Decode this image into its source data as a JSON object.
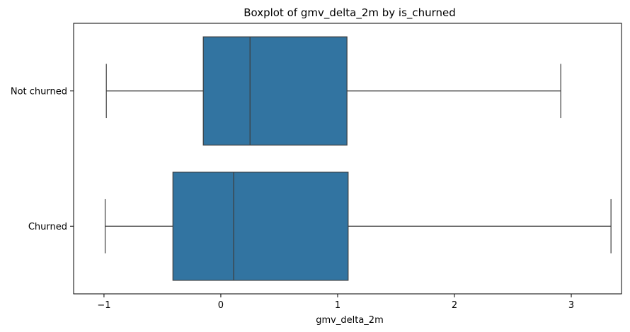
{
  "chart_data": {
    "type": "boxplot",
    "orientation": "horizontal",
    "title": "Boxplot of gmv_delta_2m by is_churned",
    "xlabel": "gmv_delta_2m",
    "ylabel": "",
    "xlim": [
      -1.26,
      3.43
    ],
    "x_ticks": [
      {
        "value": -1,
        "label": "−1"
      },
      {
        "value": 0,
        "label": "0"
      },
      {
        "value": 1,
        "label": "1"
      },
      {
        "value": 2,
        "label": "2"
      },
      {
        "value": 3,
        "label": "3"
      }
    ],
    "categories": [
      "Not churned",
      "Churned"
    ],
    "series": [
      {
        "category": "Not churned",
        "whislo": -0.98,
        "q1": -0.15,
        "median": 0.25,
        "q3": 1.08,
        "whishi": 2.91
      },
      {
        "category": "Churned",
        "whislo": -0.99,
        "q1": -0.41,
        "median": 0.11,
        "q3": 1.09,
        "whishi": 3.34
      }
    ],
    "grid": false,
    "legend": "none",
    "colors": {
      "box_fill": "#3274a1",
      "line": "#3d3d3d",
      "axis": "#000000"
    }
  }
}
